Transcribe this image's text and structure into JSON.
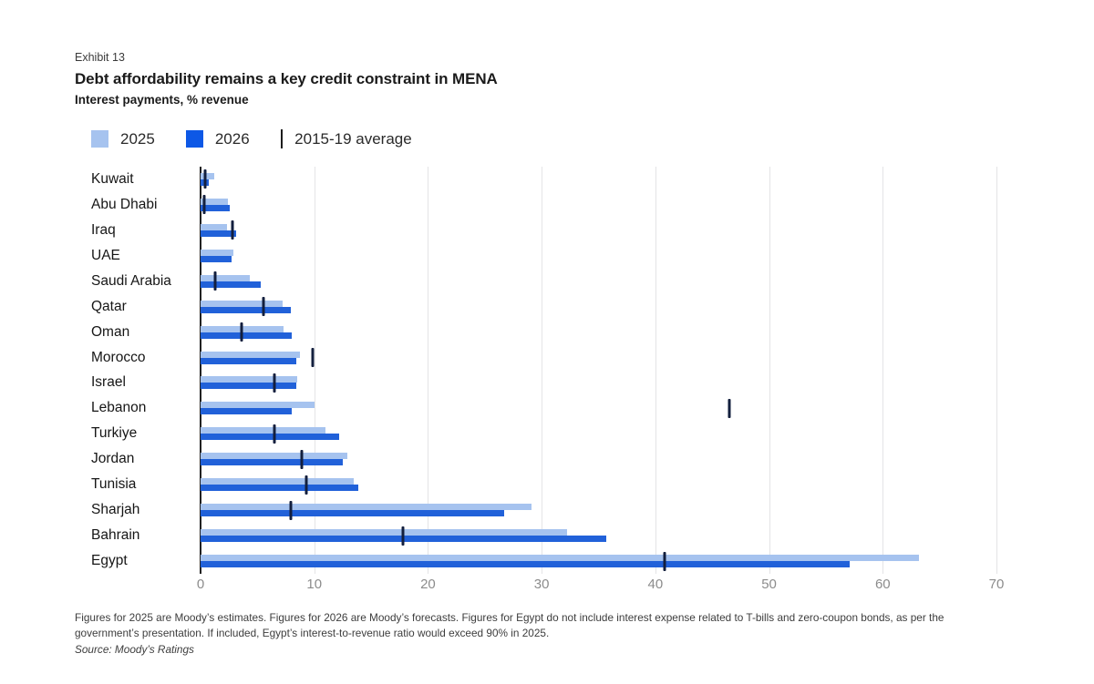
{
  "header": {
    "exhibit": "Exhibit 13",
    "title": "Debt affordability remains a key credit constraint in MENA",
    "subtitle": "Interest payments, % revenue"
  },
  "legend": {
    "items": [
      {
        "label": "2025",
        "type": "square",
        "color": "#a6c3ef"
      },
      {
        "label": "2026",
        "type": "square",
        "color": "#0d58e6"
      },
      {
        "label": "2015-19 average",
        "type": "line",
        "color": "#1c1c1c"
      }
    ]
  },
  "chart_data": {
    "type": "bar",
    "orientation": "horizontal",
    "title": "Debt affordability remains a key credit constraint in MENA",
    "xlabel": "Interest payments, % revenue",
    "xlim": [
      0,
      70
    ],
    "xticks": [
      0,
      10,
      20,
      30,
      40,
      50,
      60,
      70
    ],
    "grid": "vertical",
    "legend_position": "top",
    "categories": [
      "Kuwait",
      "Abu Dhabi",
      "Iraq",
      "UAE",
      "Saudi Arabia",
      "Qatar",
      "Oman",
      "Morocco",
      "Israel",
      "Lebanon",
      "Turkiye",
      "Jordan",
      "Tunisia",
      "Sharjah",
      "Bahrain",
      "Egypt"
    ],
    "series": [
      {
        "name": "2025",
        "style": "bar",
        "color": "#a6c3ef",
        "values": [
          1.2,
          2.4,
          2.3,
          2.9,
          4.3,
          7.2,
          7.3,
          8.7,
          8.5,
          10.0,
          11.0,
          12.9,
          13.5,
          29.1,
          32.2,
          63.2
        ]
      },
      {
        "name": "2026",
        "style": "bar",
        "color": "#2161d9",
        "values": [
          0.7,
          2.6,
          3.1,
          2.7,
          5.3,
          7.9,
          8.0,
          8.4,
          8.4,
          8.0,
          12.2,
          12.5,
          13.9,
          26.7,
          35.7,
          57.1
        ]
      },
      {
        "name": "2015-19 average",
        "style": "tick",
        "color": "#131f3e",
        "values": [
          0.4,
          0.3,
          2.8,
          null,
          1.3,
          5.5,
          3.6,
          9.9,
          6.5,
          46.5,
          6.5,
          8.9,
          9.3,
          7.9,
          17.8,
          40.8
        ]
      }
    ]
  },
  "footnote": {
    "line1": "Figures for 2025 are Moody’s estimates. Figures for 2026 are Moody’s forecasts. Figures for Egypt do not include interest expense related to T-bills and zero-coupon bonds, as per the",
    "line2": "government’s presentation. If included, Egypt’s interest-to-revenue ratio would exceed 90% in 2025."
  },
  "source": "Source: Moody’s Ratings"
}
